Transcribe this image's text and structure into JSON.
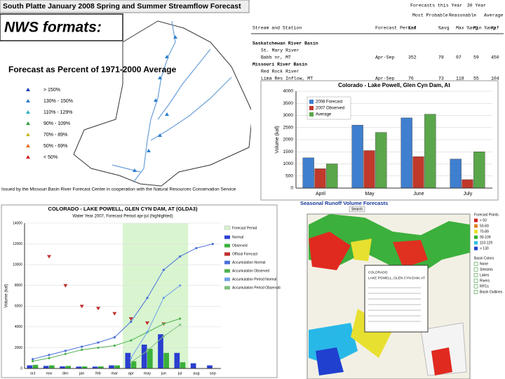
{
  "slide_title": "NWS formats:",
  "map_panel": {
    "title": "South Platte January 2008 Spring and Summer Streamflow Forecast",
    "legend_title": "Forecast as Percent of 1971-2000 Average",
    "legend": [
      "> 150%",
      "130% - 150%",
      "110% - 129%",
      "90% - 109%",
      "70% - 89%",
      "50% - 69%",
      "< 50%"
    ],
    "legend_colors": [
      "#1a3fb5",
      "#2a7fd0",
      "#33b0c0",
      "#3aa040",
      "#c8b820",
      "#e07020",
      "#d02020"
    ],
    "footer": "Issued by the Missouri Basin River Forecast Center in cooperation with the Natural Resources Conservation Service"
  },
  "table_panel": {
    "super_headers": [
      "Forecasts this Year",
      "30 Year",
      "Most Probable",
      "Reasonable",
      "Average"
    ],
    "headers": [
      "Stream and Station",
      "Forecast Period",
      "Kaf",
      "%avg",
      "Max %avg",
      "Min %avg",
      "Kaf"
    ],
    "rows": [
      [
        "Saskatchewan River Basin"
      ],
      [
        "St. Mary River"
      ],
      [
        "Babb nr, MT",
        "Apr-Sep",
        "352",
        "78",
        "97",
        "59",
        "450"
      ],
      [
        "Missouri River Basin"
      ],
      [
        "Red Rock River"
      ],
      [
        "Lima Res Inflow, MT",
        "Apr-Sep",
        "76",
        "73",
        "118",
        "55",
        "104"
      ]
    ]
  },
  "chart_data": [
    {
      "type": "bar",
      "title": "Colorado - Lake Powell, Glen Cyn Dam, At",
      "y_label": "Volume (kaf)",
      "categories": [
        "April",
        "May",
        "June",
        "July"
      ],
      "series": [
        {
          "name": "2008 Forecast",
          "color": "#3f7fcf",
          "values": [
            1250,
            2600,
            2900,
            1200
          ]
        },
        {
          "name": "2007 Observed",
          "color": "#c0392b",
          "values": [
            800,
            1550,
            1300,
            350
          ]
        },
        {
          "name": "Average",
          "color": "#5aa64a",
          "values": [
            1000,
            2300,
            3050,
            1500
          ]
        }
      ],
      "ylim": [
        0,
        4000
      ],
      "yticks": [
        0,
        500,
        1000,
        1500,
        2000,
        2500,
        3000,
        3500,
        4000
      ],
      "grid": true
    },
    {
      "type": "combo",
      "title": "COLORADO - LAKE POWELL, GLEN CYN DAM, AT (GLDA3)",
      "subtitle": "Water Year 2007, Forecast Period apr-jul (highlighted)",
      "y_label": "Volume (kaf)",
      "categories": [
        "oct",
        "nov",
        "dec",
        "jan",
        "feb",
        "mar",
        "apr",
        "may",
        "jun",
        "jul",
        "aug",
        "sep"
      ],
      "highlight": [
        6,
        9
      ],
      "highlight_name": "Forecast Period",
      "series": [
        {
          "name": "Normal",
          "kind": "bar",
          "color": "#2a3fd0",
          "values": [
            300,
            250,
            200,
            180,
            180,
            300,
            1500,
            2300,
            3300,
            1500,
            500,
            300
          ]
        },
        {
          "name": "Observed",
          "kind": "bar",
          "color": "#3ab03a",
          "values": [
            350,
            300,
            250,
            200,
            200,
            300,
            700,
            1900,
            1500,
            600,
            null,
            null
          ]
        },
        {
          "name": "Official Forecast",
          "kind": "marker",
          "color": "#c03030",
          "values": [
            null,
            10800,
            8000,
            6000,
            5800,
            5300,
            4800,
            4400,
            4300,
            null,
            null,
            null
          ]
        },
        {
          "name": "Accumulation Normal",
          "kind": "line",
          "color": "#4a70d8",
          "values": [
            900,
            1300,
            1700,
            2100,
            2500,
            3000,
            4500,
            6800,
            9500,
            10800,
            11600,
            12000
          ]
        },
        {
          "name": "Accumulation Observed",
          "kind": "line",
          "color": "#50b050",
          "values": [
            700,
            1000,
            1400,
            1800,
            2000,
            2200,
            2700,
            3500,
            4300,
            4800,
            null,
            null
          ]
        },
        {
          "name": "Accumulation Period Normal",
          "kind": "line",
          "color": "#6fa0e8",
          "values": [
            null,
            null,
            null,
            null,
            null,
            null,
            1000,
            3500,
            6800,
            8000,
            null,
            null
          ]
        },
        {
          "name": "Accumulation Period Observation",
          "kind": "line",
          "color": "#80c080",
          "values": [
            null,
            null,
            null,
            null,
            null,
            null,
            600,
            1700,
            3100,
            4200,
            null,
            null
          ]
        }
      ],
      "ylim": [
        0,
        14000
      ],
      "yticks": [
        0,
        2000,
        4000,
        6000,
        8000,
        10000,
        12000,
        14000
      ],
      "grid": true
    }
  ],
  "runoff_panel": {
    "title": "Seasonal Runoff Volume Forecasts",
    "button": "Search",
    "legend_title": "Forecast Points",
    "legend": [
      "< 50",
      "50-69",
      "70-89",
      "90-109",
      "110-129",
      "> 130"
    ],
    "legend_colors": [
      "#d02020",
      "#e08020",
      "#e8e020",
      "#30b030",
      "#30c0e0",
      "#2040d0"
    ],
    "legend2": [
      "Basin Colors",
      "None",
      "Streams",
      "Lakes",
      "Rivers",
      "RFCs",
      "Basin Outlines"
    ],
    "popup": [
      "COLORADO",
      "LAKE POWELL, GLEN CYN DAM, AT"
    ]
  }
}
